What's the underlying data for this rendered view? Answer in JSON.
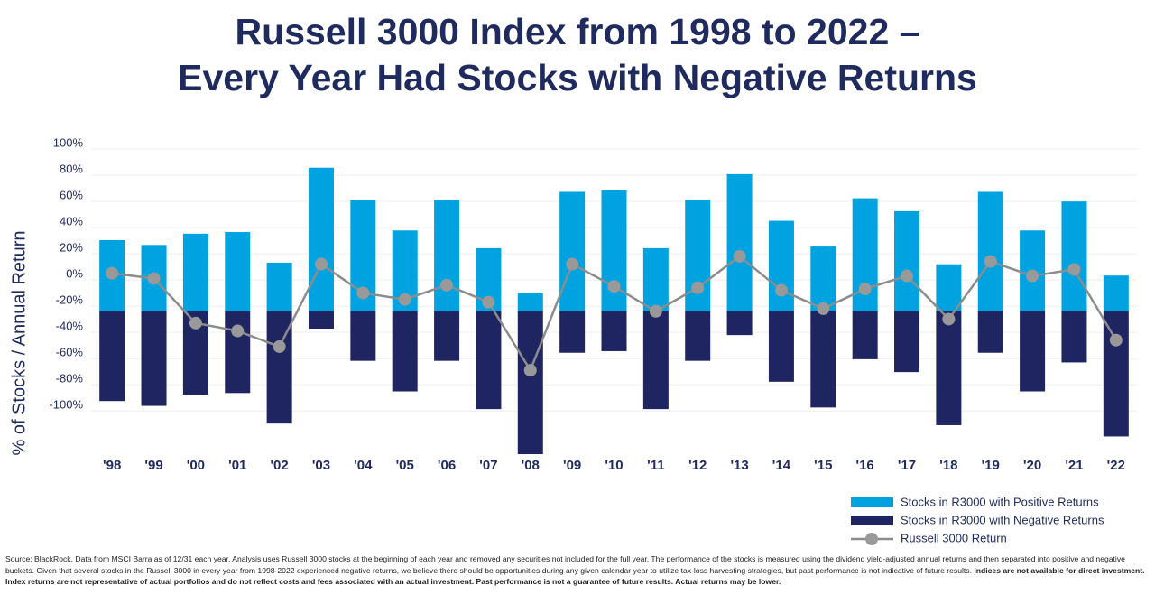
{
  "chart_data": {
    "type": "bar-line",
    "title": [
      "Russell 3000 Index from 1998 to 2022 –",
      "Every Year Had Stocks with Negative Returns"
    ],
    "y_label": "% of Stocks / Annual Return",
    "categories": [
      "'98",
      "'99",
      "'00",
      "'01",
      "'02",
      "'03",
      "'04",
      "'05",
      "'06",
      "'07",
      "'08",
      "'09",
      "'10",
      "'11",
      "'12",
      "'13",
      "'14",
      "'15",
      "'16",
      "'17",
      "'18",
      "'19",
      "'20",
      "'21",
      "'22"
    ],
    "series": [
      {
        "name": "Stocks in R3000 with Positive Returns",
        "color": "#00a3e0",
        "axis": "y2",
        "values": [
          44,
          41,
          48,
          49,
          30,
          89,
          69,
          50,
          69,
          39,
          11,
          74,
          75,
          39,
          69,
          85,
          56,
          40,
          70,
          62,
          29,
          74,
          50,
          68,
          22
        ]
      },
      {
        "name": "Stocks in R3000 with Negative Returns",
        "color": "#1f2560",
        "axis": "y2",
        "values": [
          -56,
          -59,
          -52,
          -51,
          -70,
          -11,
          -31,
          -50,
          -31,
          -61,
          -89,
          -26,
          -25,
          -61,
          -31,
          -15,
          -44,
          -60,
          -30,
          -38,
          -71,
          -26,
          -50,
          -32,
          -78
        ]
      },
      {
        "name": "Russell 3000 Return",
        "color": "#8c8c8c",
        "values": [
          1,
          -3,
          -37,
          -43,
          -55,
          8,
          -14,
          -19,
          -8,
          -21,
          -73,
          8,
          -9,
          -28,
          -10,
          14,
          -12,
          -26,
          -11,
          -1,
          -34,
          10,
          -1,
          4,
          -50
        ]
      }
    ],
    "ylim": [
      -126,
      100
    ],
    "yticks": [
      {
        "value": 100,
        "label": "100%"
      },
      {
        "value": 80,
        "label": "80%"
      },
      {
        "value": 60,
        "label": "60%"
      },
      {
        "value": 40,
        "label": "40%"
      },
      {
        "value": 20,
        "label": "20%"
      },
      {
        "value": 0,
        "label": "0%"
      },
      {
        "value": -20,
        "label": "-20%"
      },
      {
        "value": -40,
        "label": "-40%"
      },
      {
        "value": -60,
        "label": "-60%"
      },
      {
        "value": -80,
        "label": "-80%"
      },
      {
        "value": -100,
        "label": "-100%"
      }
    ],
    "y2lim": [
      -80,
      104
    ],
    "grid": true,
    "legend": "bottom-right",
    "note": "Source: BlackRock. Data from MSCI Barra as of 12/31 each year. Analysis uses Russell 3000 stocks at the beginning of each year and removed any securities not included for the full year. The performance of the stocks is measured using the dividend yield-adjusted annual returns and then separated into positive and negative buckets. Given that several stocks in the Russell 3000 in every year from 1998-2022 experienced negative returns, we believe there should be opportunities during any given calendar year to utilize tax-loss harvesting strategies, but past performance is not indicative of future results.",
    "note_bold": "Indices are not available for direct investment. Index returns are not representative of actual portfolios and do not reflect costs and fees associated with an actual investment. Past performance is not a guarantee of future results. Actual returns may be lower."
  }
}
